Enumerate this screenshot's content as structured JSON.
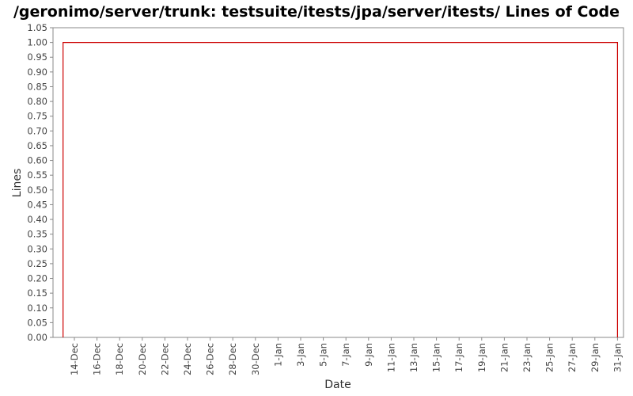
{
  "chart_data": {
    "type": "line",
    "title": "/geronimo/server/trunk: testsuite/itests/jpa/server/itests/ Lines of Code",
    "xlabel": "Date",
    "ylabel": "Lines",
    "x_tick_labels": [
      "14-Dec",
      "16-Dec",
      "18-Dec",
      "20-Dec",
      "22-Dec",
      "24-Dec",
      "26-Dec",
      "28-Dec",
      "30-Dec",
      "1-Jan",
      "3-Jan",
      "5-Jan",
      "7-Jan",
      "9-Jan",
      "11-Jan",
      "13-Jan",
      "15-Jan",
      "17-Jan",
      "19-Jan",
      "21-Jan",
      "23-Jan",
      "25-Jan",
      "27-Jan",
      "29-Jan",
      "31-Jan"
    ],
    "ylim": [
      0,
      1.05
    ],
    "y_tick_labels": [
      "0.00",
      "0.05",
      "0.10",
      "0.15",
      "0.20",
      "0.25",
      "0.30",
      "0.35",
      "0.40",
      "0.45",
      "0.50",
      "0.55",
      "0.60",
      "0.65",
      "0.70",
      "0.75",
      "0.80",
      "0.85",
      "0.90",
      "0.95",
      "1.00",
      "1.05"
    ],
    "series": [
      {
        "color": "#cc0000",
        "points": [
          {
            "x": "13-Dec",
            "y": 0
          },
          {
            "x": "13-Dec",
            "y": 1
          },
          {
            "x": "31-Jan",
            "y": 1
          },
          {
            "x": "31-Jan",
            "y": 0
          }
        ]
      }
    ],
    "grid": false,
    "legend": false
  }
}
